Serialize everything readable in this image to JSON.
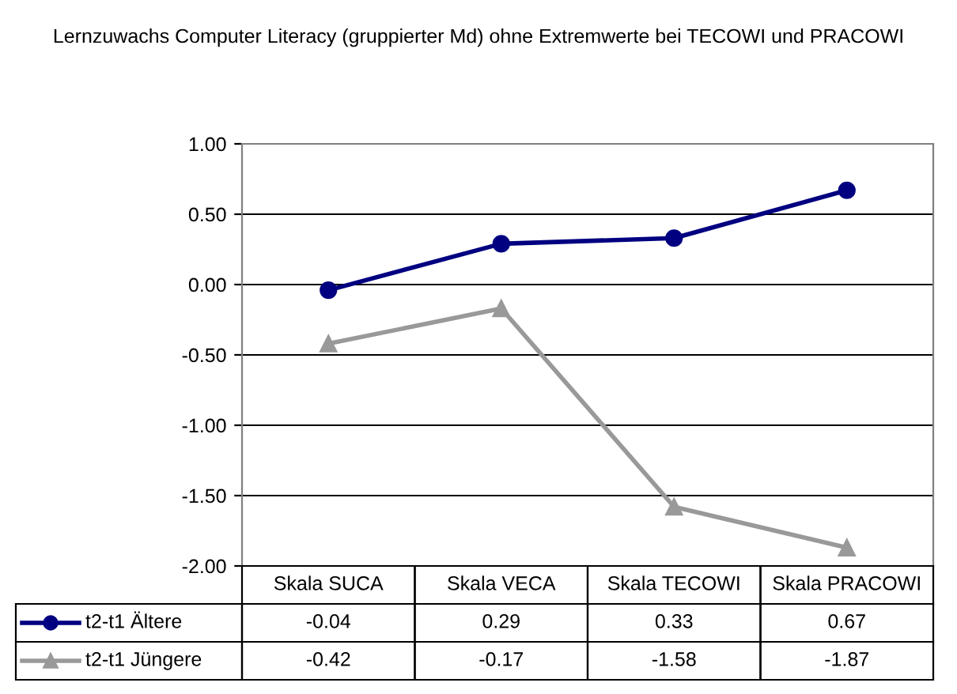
{
  "chart_data": {
    "type": "line",
    "title": "Lernzuwachs Computer Literacy (gruppierter Md) ohne Extremwerte bei TECOWI und PRACOWI",
    "categories": [
      "Skala SUCA",
      "Skala VECA",
      "Skala TECOWI",
      "Skala PRACOWI"
    ],
    "series": [
      {
        "name": "t2-t1 Ältere",
        "color": "#000080",
        "marker": "circle",
        "values": [
          -0.04,
          0.29,
          0.33,
          0.67
        ]
      },
      {
        "name": "t2-t1 Jüngere",
        "color": "#999999",
        "marker": "triangle",
        "values": [
          -0.42,
          -0.17,
          -1.58,
          -1.87
        ]
      }
    ],
    "ylim": [
      -2,
      1
    ],
    "yticks": [
      {
        "value": -2,
        "label": "-2.00"
      },
      {
        "value": -1.5,
        "label": "-1.50"
      },
      {
        "value": -1,
        "label": "-1.00"
      },
      {
        "value": -0.5,
        "label": "-0.50"
      },
      {
        "value": 0,
        "label": "0.00"
      },
      {
        "value": 0.5,
        "label": "0.50"
      },
      {
        "value": 1,
        "label": "1.00"
      }
    ],
    "grid": "y",
    "data_labels": true,
    "legend": "bottom"
  }
}
